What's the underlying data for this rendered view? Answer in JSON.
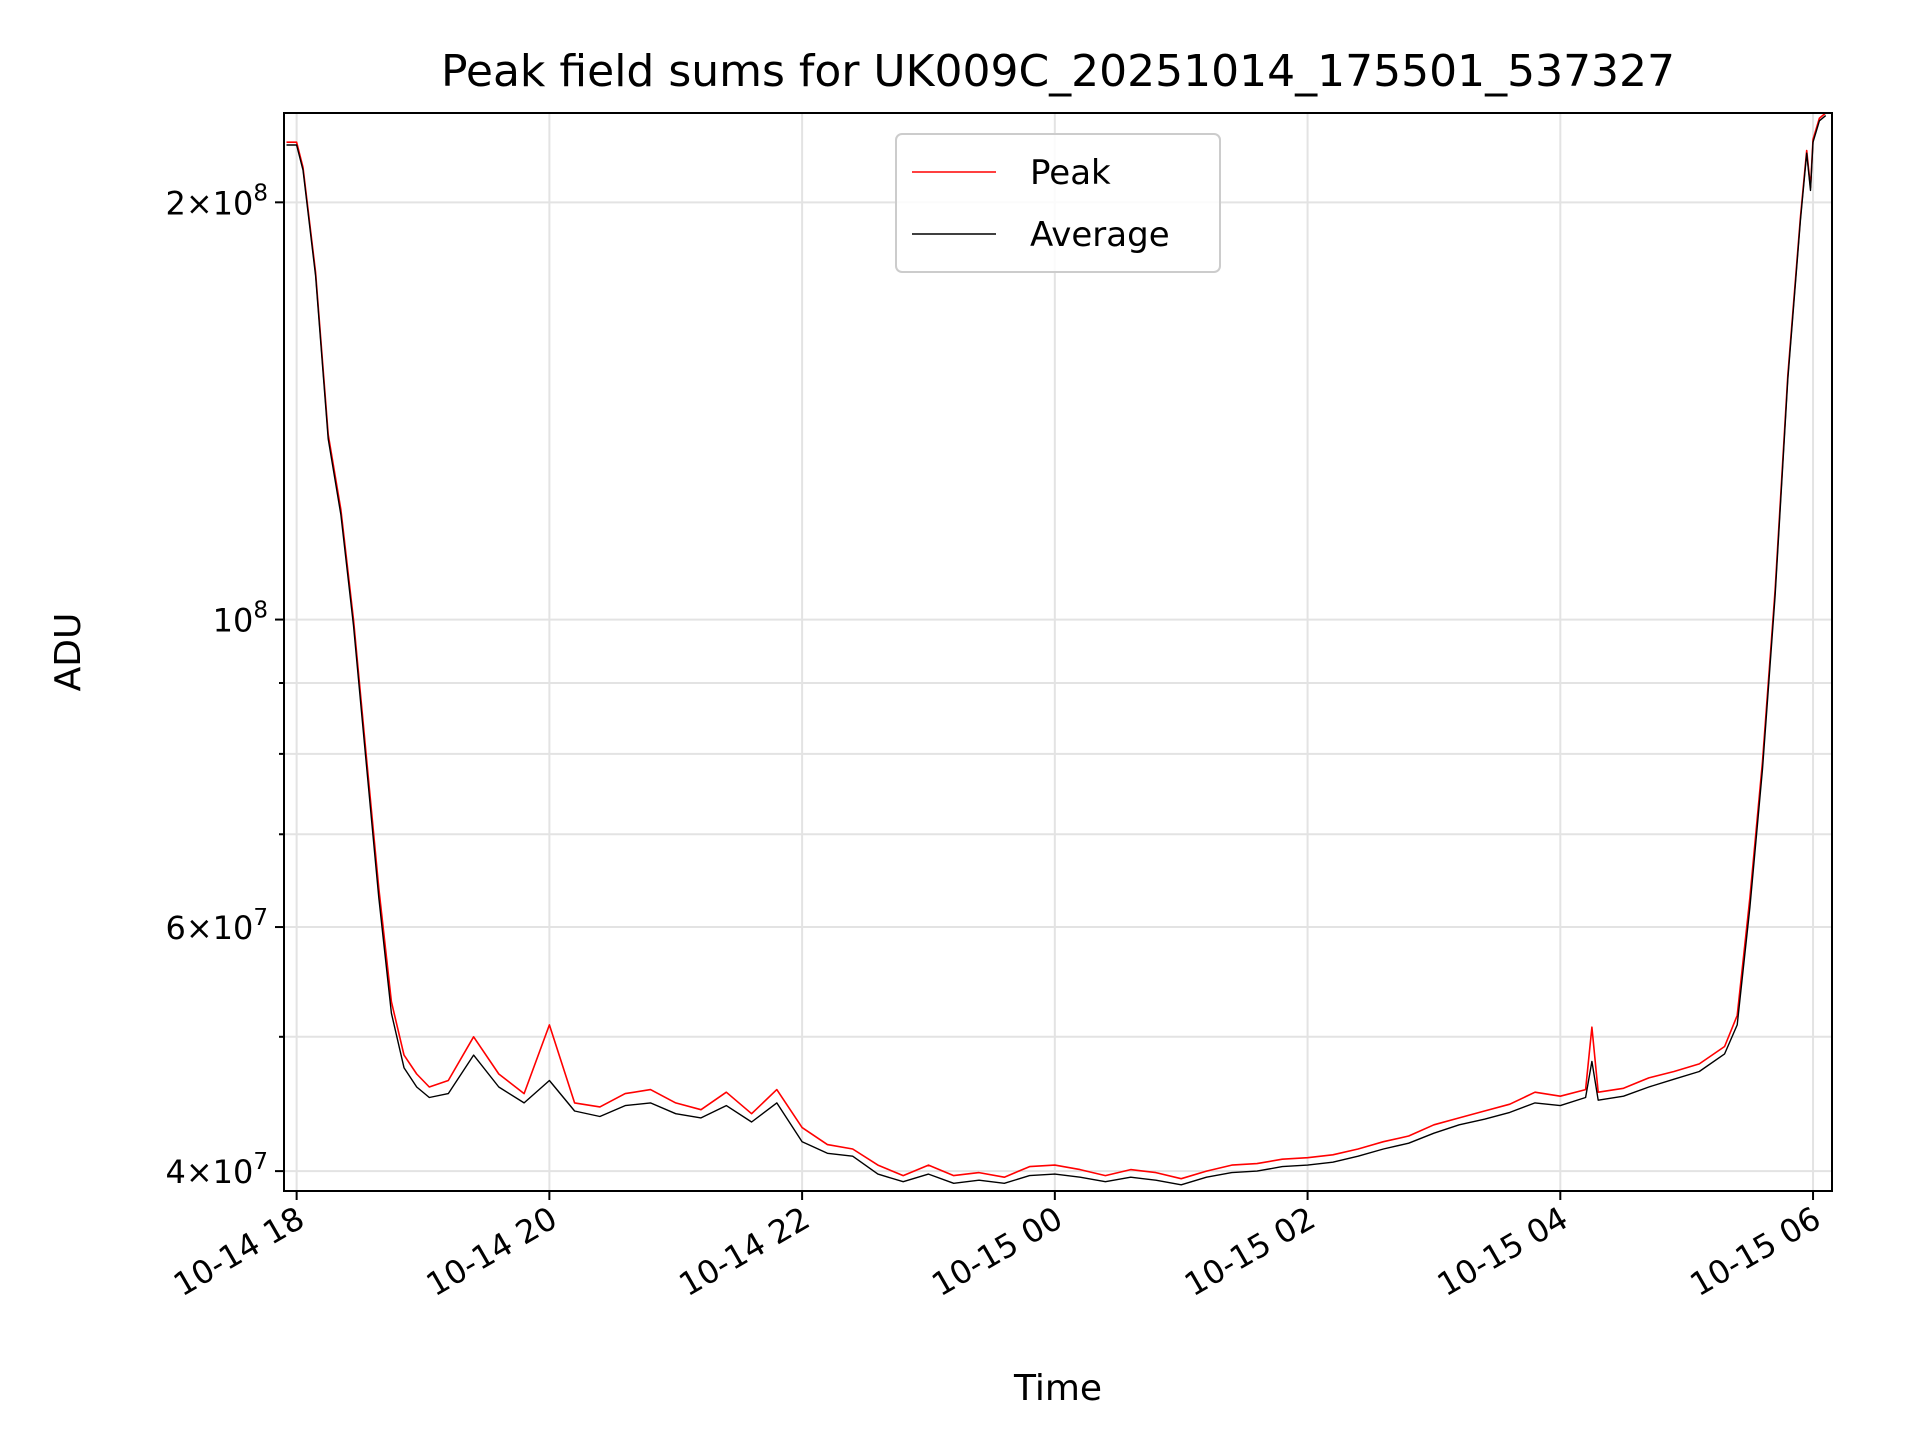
{
  "chart_data": {
    "type": "line",
    "title": "Peak field sums for UK009C_20251014_175501_537327",
    "xlabel": "Time",
    "ylabel": "ADU",
    "yscale": "log",
    "ylim": [
      38700000,
      232000000
    ],
    "xlim_hours": [
      -0.1,
      12.15
    ],
    "x_ticks": [
      {
        "hour": 0,
        "label": "10-14 18"
      },
      {
        "hour": 2,
        "label": "10-14 20"
      },
      {
        "hour": 4,
        "label": "10-14 22"
      },
      {
        "hour": 6,
        "label": "10-15 00"
      },
      {
        "hour": 8,
        "label": "10-15 02"
      },
      {
        "hour": 10,
        "label": "10-15 04"
      },
      {
        "hour": 12,
        "label": "10-15 06"
      }
    ],
    "y_major_ticks": [
      {
        "value": 40000000,
        "mant": "4",
        "exp": "7"
      },
      {
        "value": 60000000,
        "mant": "6",
        "exp": "7"
      },
      {
        "value": 100000000,
        "mant": "",
        "exp": "8"
      },
      {
        "value": 200000000,
        "mant": "2",
        "exp": "8"
      }
    ],
    "y_minor_ticks": [
      50000000,
      70000000,
      80000000,
      90000000
    ],
    "legend": {
      "position": "upper center",
      "entries": [
        {
          "name": "Peak",
          "color": "#ff0000"
        },
        {
          "name": "Average",
          "color": "#000000"
        }
      ]
    },
    "series": [
      {
        "name": "Peak",
        "color": "#ff0000",
        "x_hours": [
          -0.08,
          0.0,
          0.05,
          0.15,
          0.25,
          0.35,
          0.45,
          0.55,
          0.65,
          0.75,
          0.85,
          0.95,
          1.05,
          1.2,
          1.4,
          1.6,
          1.8,
          2.0,
          2.2,
          2.4,
          2.6,
          2.8,
          3.0,
          3.2,
          3.4,
          3.6,
          3.8,
          4.0,
          4.2,
          4.4,
          4.6,
          4.8,
          5.0,
          5.2,
          5.4,
          5.6,
          5.8,
          6.0,
          6.2,
          6.4,
          6.6,
          6.8,
          7.0,
          7.2,
          7.4,
          7.6,
          7.8,
          8.0,
          8.2,
          8.4,
          8.6,
          8.8,
          9.0,
          9.2,
          9.4,
          9.6,
          9.8,
          10.0,
          10.2,
          10.25,
          10.3,
          10.5,
          10.7,
          10.9,
          11.1,
          11.3,
          11.4,
          11.5,
          11.6,
          11.7,
          11.8,
          11.9,
          11.95,
          11.98,
          12.0,
          12.05,
          12.1
        ],
        "values": [
          221000000,
          221000000,
          212000000,
          178000000,
          136000000,
          120000000,
          100000000,
          80000000,
          64000000,
          53000000,
          48500000,
          47000000,
          46000000,
          46500000,
          50000000,
          47000000,
          45500000,
          51000000,
          44800000,
          44500000,
          45500000,
          45800000,
          44800000,
          44300000,
          45600000,
          44000000,
          45800000,
          43000000,
          41800000,
          41500000,
          40400000,
          39700000,
          40400000,
          39700000,
          39900000,
          39600000,
          40300000,
          40400000,
          40100000,
          39700000,
          40100000,
          39900000,
          39500000,
          40000000,
          40400000,
          40500000,
          40800000,
          40900000,
          41100000,
          41500000,
          42000000,
          42400000,
          43200000,
          43700000,
          44200000,
          44700000,
          45600000,
          45300000,
          45800000,
          50800000,
          45600000,
          45900000,
          46700000,
          47200000,
          47800000,
          49200000,
          51800000,
          63000000,
          79000000,
          105000000,
          150000000,
          195000000,
          218000000,
          205000000,
          222000000,
          230000000,
          232000000
        ]
      },
      {
        "name": "Average",
        "color": "#000000",
        "x_hours": [
          -0.08,
          0.0,
          0.05,
          0.15,
          0.25,
          0.35,
          0.45,
          0.55,
          0.65,
          0.75,
          0.85,
          0.95,
          1.05,
          1.2,
          1.4,
          1.6,
          1.8,
          2.0,
          2.2,
          2.4,
          2.6,
          2.8,
          3.0,
          3.2,
          3.4,
          3.6,
          3.8,
          4.0,
          4.2,
          4.4,
          4.6,
          4.8,
          5.0,
          5.2,
          5.4,
          5.6,
          5.8,
          6.0,
          6.2,
          6.4,
          6.6,
          6.8,
          7.0,
          7.2,
          7.4,
          7.6,
          7.8,
          8.0,
          8.2,
          8.4,
          8.6,
          8.8,
          9.0,
          9.2,
          9.4,
          9.6,
          9.8,
          10.0,
          10.2,
          10.25,
          10.3,
          10.5,
          10.7,
          10.9,
          11.1,
          11.3,
          11.4,
          11.5,
          11.6,
          11.7,
          11.8,
          11.9,
          11.95,
          11.98,
          12.0,
          12.05,
          12.1
        ],
        "values": [
          220000000,
          220000000,
          211000000,
          177000000,
          135000000,
          119000000,
          99000000,
          79000000,
          63000000,
          52000000,
          47500000,
          46000000,
          45200000,
          45500000,
          48500000,
          46000000,
          44800000,
          46500000,
          44200000,
          43800000,
          44600000,
          44800000,
          44000000,
          43700000,
          44600000,
          43400000,
          44800000,
          42000000,
          41200000,
          41000000,
          39800000,
          39300000,
          39800000,
          39200000,
          39400000,
          39200000,
          39700000,
          39800000,
          39600000,
          39300000,
          39600000,
          39400000,
          39100000,
          39600000,
          39900000,
          40000000,
          40300000,
          40400000,
          40600000,
          41000000,
          41500000,
          41900000,
          42600000,
          43200000,
          43600000,
          44100000,
          44800000,
          44600000,
          45200000,
          48000000,
          45000000,
          45300000,
          46000000,
          46600000,
          47200000,
          48600000,
          51000000,
          62000000,
          78000000,
          104000000,
          149000000,
          194000000,
          217000000,
          204000000,
          221000000,
          229000000,
          231000000
        ]
      }
    ]
  }
}
